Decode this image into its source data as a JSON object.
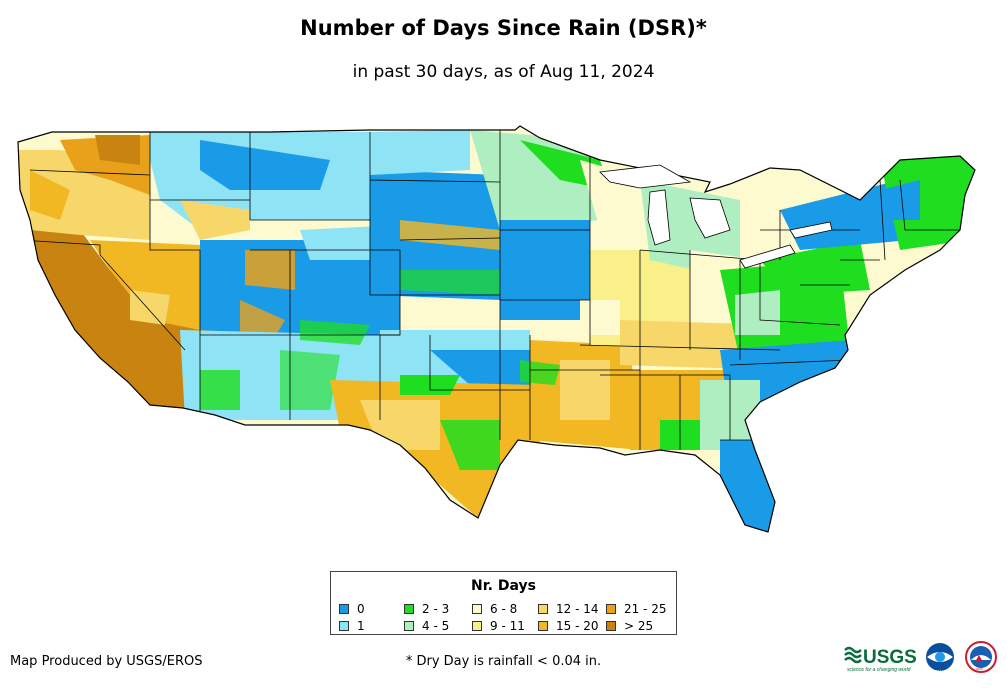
{
  "header": {
    "title": "Number of Days Since Rain (DSR)*",
    "subtitle": "in past 30 days, as of Aug 11, 2024"
  },
  "legend": {
    "title": "Nr. Days",
    "items": [
      {
        "label": "0",
        "color": "#1a9be8"
      },
      {
        "label": "1",
        "color": "#8ee3f5"
      },
      {
        "label": "2 - 3",
        "color": "#1fdd1f"
      },
      {
        "label": "4 - 5",
        "color": "#aeeec0"
      },
      {
        "label": "6 - 8",
        "color": "#fdfad0"
      },
      {
        "label": "9 - 11",
        "color": "#faf08a"
      },
      {
        "label": "12 - 14",
        "color": "#f7d769"
      },
      {
        "label": "15 - 20",
        "color": "#f2b823"
      },
      {
        "label": "21 - 25",
        "color": "#e9a11a"
      },
      {
        "label": "> 25",
        "color": "#c88310"
      }
    ]
  },
  "footer": {
    "credit": "Map Produced by USGS/EROS",
    "footnote": "* Dry Day is rainfall < 0.04 in.",
    "usgs_logo_text": "USGS",
    "usgs_tagline": "science for a changing world",
    "noaa_logo_text": "NOAA",
    "nws_logo_text": "NWS"
  }
}
